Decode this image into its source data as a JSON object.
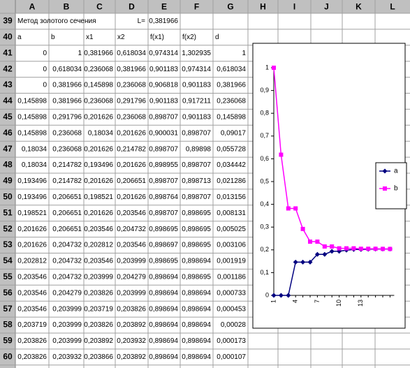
{
  "sheet": {
    "columns": [
      "A",
      "B",
      "C",
      "D",
      "E",
      "F",
      "G",
      "H",
      "I",
      "J",
      "K",
      "L"
    ],
    "header_row": {
      "number": 39,
      "title": "Метод золотого сечения",
      "L_label": "L=",
      "L_value": "0,381966"
    },
    "column_row": {
      "number": 40,
      "labels": [
        "a",
        "b",
        "x1",
        "x2",
        "f(x1)",
        "f(x2)",
        "d"
      ]
    },
    "rows": [
      {
        "number": 41,
        "cells": [
          "0",
          "1",
          "0,381966",
          "0,618034",
          "0,974314",
          "1,302935",
          "1"
        ]
      },
      {
        "number": 42,
        "cells": [
          "0",
          "0,618034",
          "0,236068",
          "0,381966",
          "0,901183",
          "0,974314",
          "0,618034"
        ]
      },
      {
        "number": 43,
        "cells": [
          "0",
          "0,381966",
          "0,145898",
          "0,236068",
          "0,906818",
          "0,901183",
          "0,381966"
        ]
      },
      {
        "number": 44,
        "cells": [
          "0,145898",
          "0,381966",
          "0,236068",
          "0,291796",
          "0,901183",
          "0,917211",
          "0,236068"
        ]
      },
      {
        "number": 45,
        "cells": [
          "0,145898",
          "0,291796",
          "0,201626",
          "0,236068",
          "0,898707",
          "0,901183",
          "0,145898"
        ]
      },
      {
        "number": 46,
        "cells": [
          "0,145898",
          "0,236068",
          "0,18034",
          "0,201626",
          "0,900031",
          "0,898707",
          "0,09017"
        ]
      },
      {
        "number": 47,
        "cells": [
          "0,18034",
          "0,236068",
          "0,201626",
          "0,214782",
          "0,898707",
          "0,89898",
          "0,055728"
        ]
      },
      {
        "number": 48,
        "cells": [
          "0,18034",
          "0,214782",
          "0,193496",
          "0,201626",
          "0,898955",
          "0,898707",
          "0,034442"
        ]
      },
      {
        "number": 49,
        "cells": [
          "0,193496",
          "0,214782",
          "0,201626",
          "0,206651",
          "0,898707",
          "0,898713",
          "0,021286"
        ]
      },
      {
        "number": 50,
        "cells": [
          "0,193496",
          "0,206651",
          "0,198521",
          "0,201626",
          "0,898764",
          "0,898707",
          "0,013156"
        ]
      },
      {
        "number": 51,
        "cells": [
          "0,198521",
          "0,206651",
          "0,201626",
          "0,203546",
          "0,898707",
          "0,898695",
          "0,008131"
        ]
      },
      {
        "number": 52,
        "cells": [
          "0,201626",
          "0,206651",
          "0,203546",
          "0,204732",
          "0,898695",
          "0,898695",
          "0,005025"
        ]
      },
      {
        "number": 53,
        "cells": [
          "0,201626",
          "0,204732",
          "0,202812",
          "0,203546",
          "0,898697",
          "0,898695",
          "0,003106"
        ]
      },
      {
        "number": 54,
        "cells": [
          "0,202812",
          "0,204732",
          "0,203546",
          "0,203999",
          "0,898695",
          "0,898694",
          "0,001919"
        ]
      },
      {
        "number": 55,
        "cells": [
          "0,203546",
          "0,204732",
          "0,203999",
          "0,204279",
          "0,898694",
          "0,898695",
          "0,001186"
        ]
      },
      {
        "number": 56,
        "cells": [
          "0,203546",
          "0,204279",
          "0,203826",
          "0,203999",
          "0,898694",
          "0,898694",
          "0,000733"
        ]
      },
      {
        "number": 57,
        "cells": [
          "0,203546",
          "0,203999",
          "0,203719",
          "0,203826",
          "0,898694",
          "0,898694",
          "0,000453"
        ]
      },
      {
        "number": 58,
        "cells": [
          "0,203719",
          "0,203999",
          "0,203826",
          "0,203892",
          "0,898694",
          "0,898694",
          "0,00028"
        ]
      },
      {
        "number": 59,
        "cells": [
          "0,203826",
          "0,203999",
          "0,203892",
          "0,203932",
          "0,898694",
          "0,898694",
          "0,000173"
        ]
      },
      {
        "number": 60,
        "cells": [
          "0,203826",
          "0,203932",
          "0,203866",
          "0,203892",
          "0,898694",
          "0,898694",
          "0,000107"
        ]
      }
    ]
  },
  "chart_data": {
    "type": "line",
    "categories": [
      1,
      null,
      null,
      4,
      null,
      null,
      7,
      null,
      null,
      10,
      null,
      null,
      13,
      null,
      null,
      null,
      null
    ],
    "series": [
      {
        "name": "a",
        "color": "#000080",
        "marker": "diamond",
        "values": [
          0,
          0,
          0,
          0.145898,
          0.145898,
          0.145898,
          0.18034,
          0.18034,
          0.193496,
          0.193496,
          0.198521,
          0.201626,
          0.201626,
          0.202812,
          0.203546,
          0.203546,
          0.203546
        ]
      },
      {
        "name": "b",
        "color": "#ff00ff",
        "marker": "square",
        "values": [
          1,
          0.618034,
          0.381966,
          0.381966,
          0.291796,
          0.236068,
          0.236068,
          0.214782,
          0.214782,
          0.206651,
          0.206651,
          0.206651,
          0.204732,
          0.204732,
          0.204732,
          0.204279,
          0.203999
        ]
      }
    ],
    "ylim": [
      0,
      1
    ],
    "yticks": [
      0,
      {
        "value": 0.1,
        "label": "0,1"
      },
      {
        "value": 0.2,
        "label": "0,2"
      },
      {
        "value": 0.3,
        "label": "0,3"
      },
      {
        "value": 0.4,
        "label": "0,4"
      },
      {
        "value": 0.5,
        "label": "0,5"
      },
      {
        "value": 0.6,
        "label": "0,6"
      },
      {
        "value": 0.7,
        "label": "0,7"
      },
      {
        "value": 0.8,
        "label": "0,8"
      },
      {
        "value": 0.9,
        "label": "0,9"
      },
      1
    ],
    "legend": "right"
  }
}
